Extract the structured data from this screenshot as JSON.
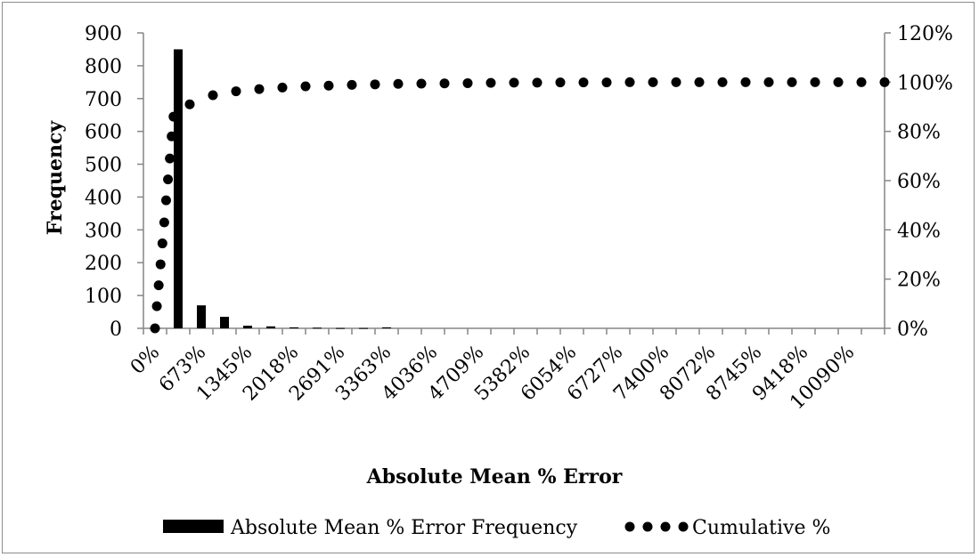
{
  "chart_data": {
    "type": "bar",
    "title": "",
    "xlabel": "Absolute Mean % Error",
    "ylabel": "Frequency",
    "ylim": [
      0,
      900
    ],
    "y_ticks": [
      "0",
      "100",
      "200",
      "300",
      "400",
      "500",
      "600",
      "700",
      "800",
      "900"
    ],
    "y2lim": [
      0,
      1.2
    ],
    "y2_ticks": [
      "0%",
      "20%",
      "40%",
      "60%",
      "80%",
      "100%",
      "120%"
    ],
    "x_tick_labels": [
      "0%",
      "673%",
      "1345%",
      "2018%",
      "2691%",
      "3363%",
      "4036%",
      "4709%",
      "5382%",
      "6054%",
      "6727%",
      "7400%",
      "8072%",
      "8745%",
      "9418%",
      "10090%"
    ],
    "grid": false,
    "legend_position": "bottom",
    "series": [
      {
        "name": "Absolute Mean % Error Frequency",
        "kind": "bar",
        "axis": "left",
        "color": "#000000",
        "values": [
          0,
          850,
          70,
          35,
          8,
          6,
          3,
          2,
          1,
          1,
          3,
          0,
          0,
          0,
          0,
          0,
          0,
          0,
          0,
          0,
          0,
          0,
          0,
          0,
          0,
          0,
          0,
          0,
          0,
          0,
          0,
          0
        ]
      },
      {
        "name": "Cumulative %",
        "kind": "scatter",
        "axis": "right",
        "color": "#000000",
        "points": [
          {
            "x": 0,
            "y": 0.0
          },
          {
            "x": 0.08,
            "y": 0.09
          },
          {
            "x": 0.16,
            "y": 0.175
          },
          {
            "x": 0.24,
            "y": 0.26
          },
          {
            "x": 0.32,
            "y": 0.345
          },
          {
            "x": 0.4,
            "y": 0.43
          },
          {
            "x": 0.48,
            "y": 0.52
          },
          {
            "x": 0.56,
            "y": 0.605
          },
          {
            "x": 0.64,
            "y": 0.69
          },
          {
            "x": 0.72,
            "y": 0.78
          },
          {
            "x": 0.8,
            "y": 0.86
          },
          {
            "x": 1.5,
            "y": 0.91
          },
          {
            "x": 2.5,
            "y": 0.947
          },
          {
            "x": 3.5,
            "y": 0.963
          },
          {
            "x": 4.5,
            "y": 0.972
          },
          {
            "x": 5.5,
            "y": 0.978
          },
          {
            "x": 6.5,
            "y": 0.983
          },
          {
            "x": 7.5,
            "y": 0.986
          },
          {
            "x": 8.5,
            "y": 0.989
          },
          {
            "x": 9.5,
            "y": 0.991
          },
          {
            "x": 10.5,
            "y": 0.993
          },
          {
            "x": 11.5,
            "y": 0.994
          },
          {
            "x": 12.5,
            "y": 0.995
          },
          {
            "x": 13.5,
            "y": 0.996
          },
          {
            "x": 14.5,
            "y": 0.997
          },
          {
            "x": 15.5,
            "y": 0.998
          },
          {
            "x": 16.5,
            "y": 0.998
          },
          {
            "x": 17.5,
            "y": 0.999
          },
          {
            "x": 18.5,
            "y": 0.999
          },
          {
            "x": 19.5,
            "y": 0.999
          },
          {
            "x": 20.5,
            "y": 1.0
          },
          {
            "x": 21.5,
            "y": 1.0
          },
          {
            "x": 22.5,
            "y": 1.0
          },
          {
            "x": 23.5,
            "y": 1.0
          },
          {
            "x": 24.5,
            "y": 1.0
          },
          {
            "x": 25.5,
            "y": 1.0
          },
          {
            "x": 26.5,
            "y": 1.0
          },
          {
            "x": 27.5,
            "y": 1.0
          },
          {
            "x": 28.5,
            "y": 1.0
          },
          {
            "x": 29.5,
            "y": 1.0
          },
          {
            "x": 30.5,
            "y": 1.0
          },
          {
            "x": 31.5,
            "y": 1.0
          }
        ]
      }
    ]
  }
}
